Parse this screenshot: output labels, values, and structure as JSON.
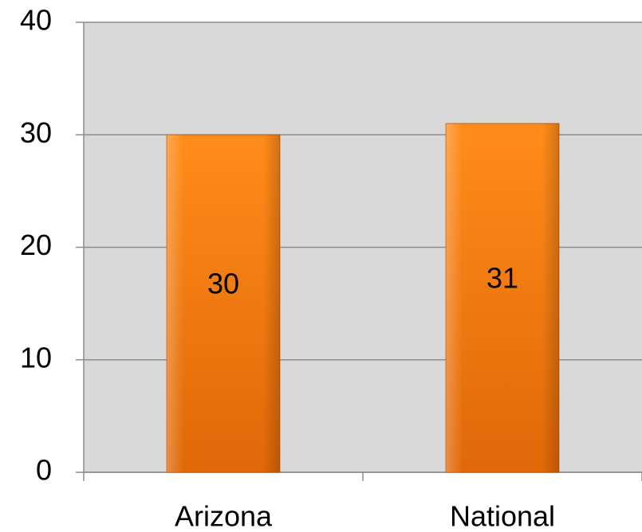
{
  "chart_data": {
    "type": "bar",
    "categories": [
      "Arizona",
      "National"
    ],
    "values": [
      30,
      31
    ],
    "color": "#f58220",
    "ylim": [
      0,
      40
    ],
    "yticks": [
      0,
      10,
      20,
      30,
      40
    ],
    "grid": true
  }
}
